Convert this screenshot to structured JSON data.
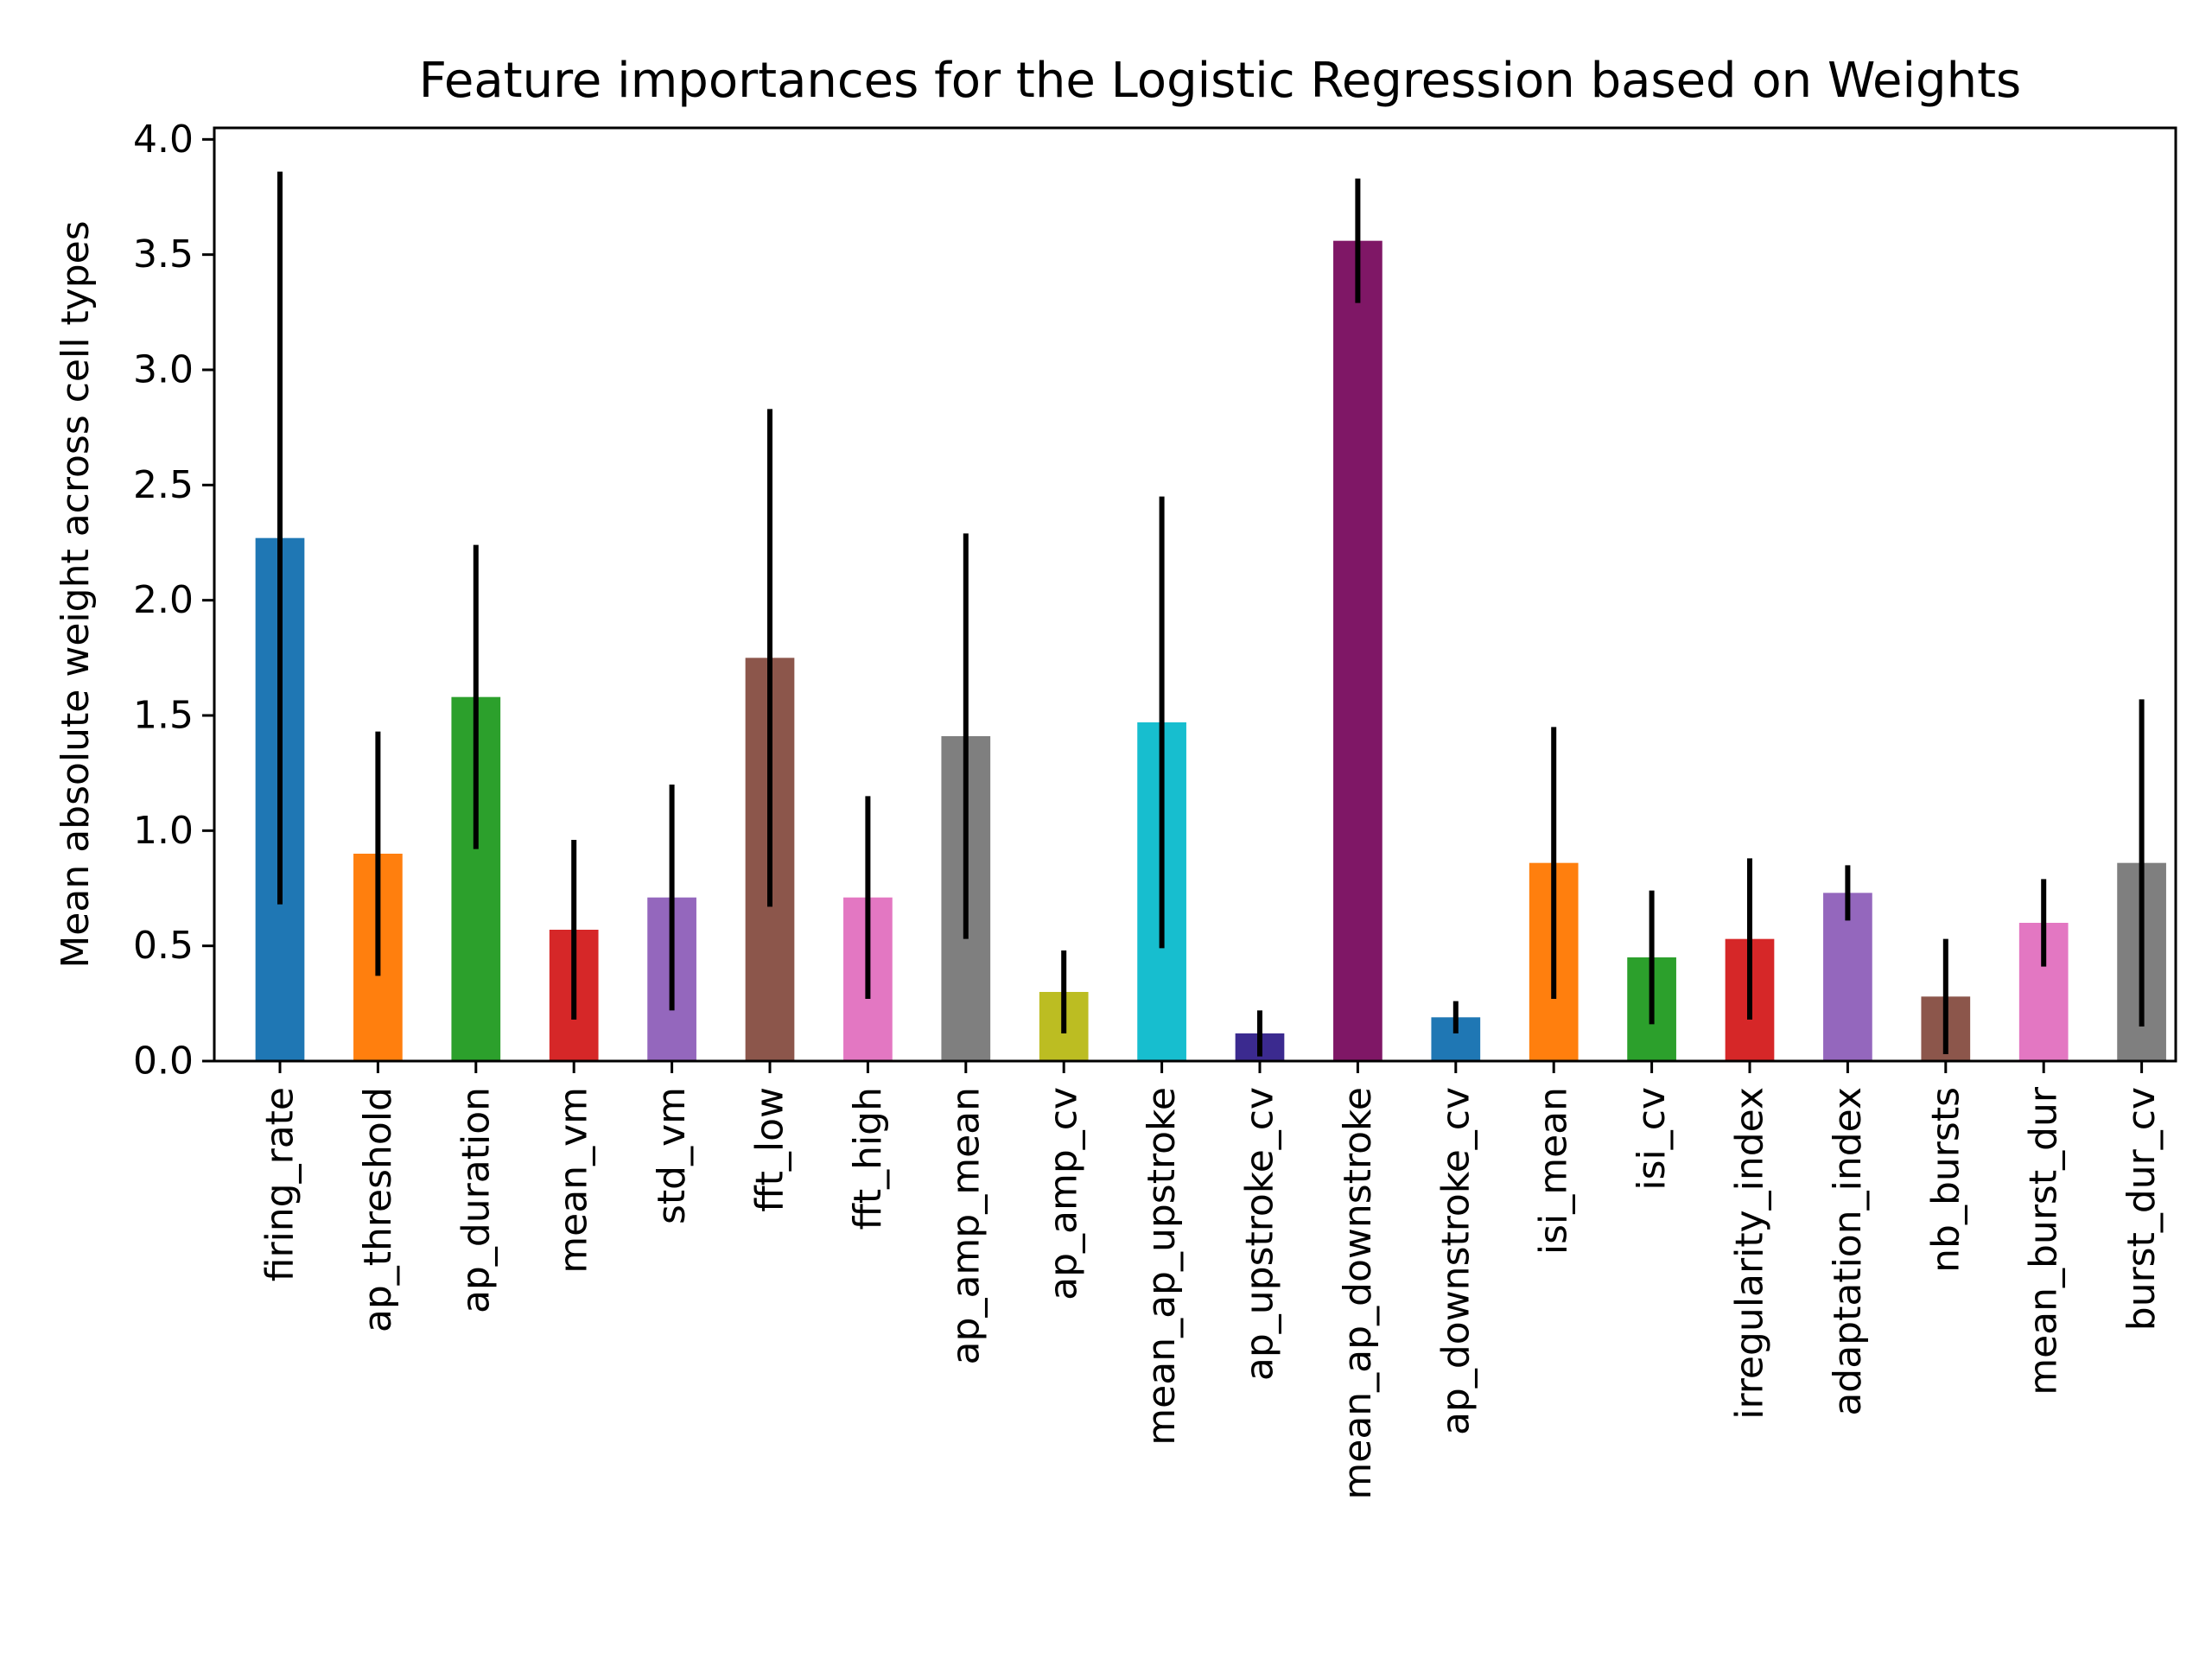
{
  "chart_data": {
    "type": "bar",
    "title": "Feature importances for the Logistic Regression based on Weights",
    "xlabel": "",
    "ylabel": "Mean absolute weight across cell types",
    "ylim": [
      0,
      4.05
    ],
    "yticks": [
      0.0,
      0.5,
      1.0,
      1.5,
      2.0,
      2.5,
      3.0,
      3.5,
      4.0
    ],
    "ytick_labels": [
      "0.0",
      "0.5",
      "1.0",
      "1.5",
      "2.0",
      "2.5",
      "3.0",
      "3.5",
      "4.0"
    ],
    "grid": false,
    "legend": "none",
    "categories": [
      "firing_rate",
      "ap_threshold",
      "ap_duration",
      "mean_vm",
      "std_vm",
      "fft_low",
      "fft_high",
      "ap_amp_mean",
      "ap_amp_cv",
      "mean_ap_upstroke",
      "ap_upstroke_cv",
      "mean_ap_downstroke",
      "ap_downstroke_cv",
      "isi_mean",
      "isi_cv",
      "irregularity_index",
      "adaptation_index",
      "nb_bursts",
      "mean_burst_dur",
      "burst_dur_cv"
    ],
    "values": [
      2.27,
      0.9,
      1.58,
      0.57,
      0.71,
      1.75,
      0.71,
      1.41,
      0.3,
      1.47,
      0.12,
      3.56,
      0.19,
      0.86,
      0.45,
      0.53,
      0.73,
      0.28,
      0.6,
      0.86
    ],
    "errors": [
      1.59,
      0.53,
      0.66,
      0.39,
      0.49,
      1.08,
      0.44,
      0.88,
      0.18,
      0.98,
      0.1,
      0.27,
      0.07,
      0.59,
      0.29,
      0.35,
      0.12,
      0.25,
      0.19,
      0.71
    ],
    "colors": [
      "#1f77b4",
      "#ff7f0e",
      "#2ca02c",
      "#d62728",
      "#9467bd",
      "#8c564b",
      "#e377c2",
      "#7f7f7f",
      "#bcbd22",
      "#17becf",
      "#3b2a8f",
      "#7f1766",
      "#1f77b4",
      "#ff7f0e",
      "#2ca02c",
      "#d62728",
      "#9467bd",
      "#8c564b",
      "#e377c2",
      "#7f7f7f"
    ],
    "error_color": "#000000"
  }
}
